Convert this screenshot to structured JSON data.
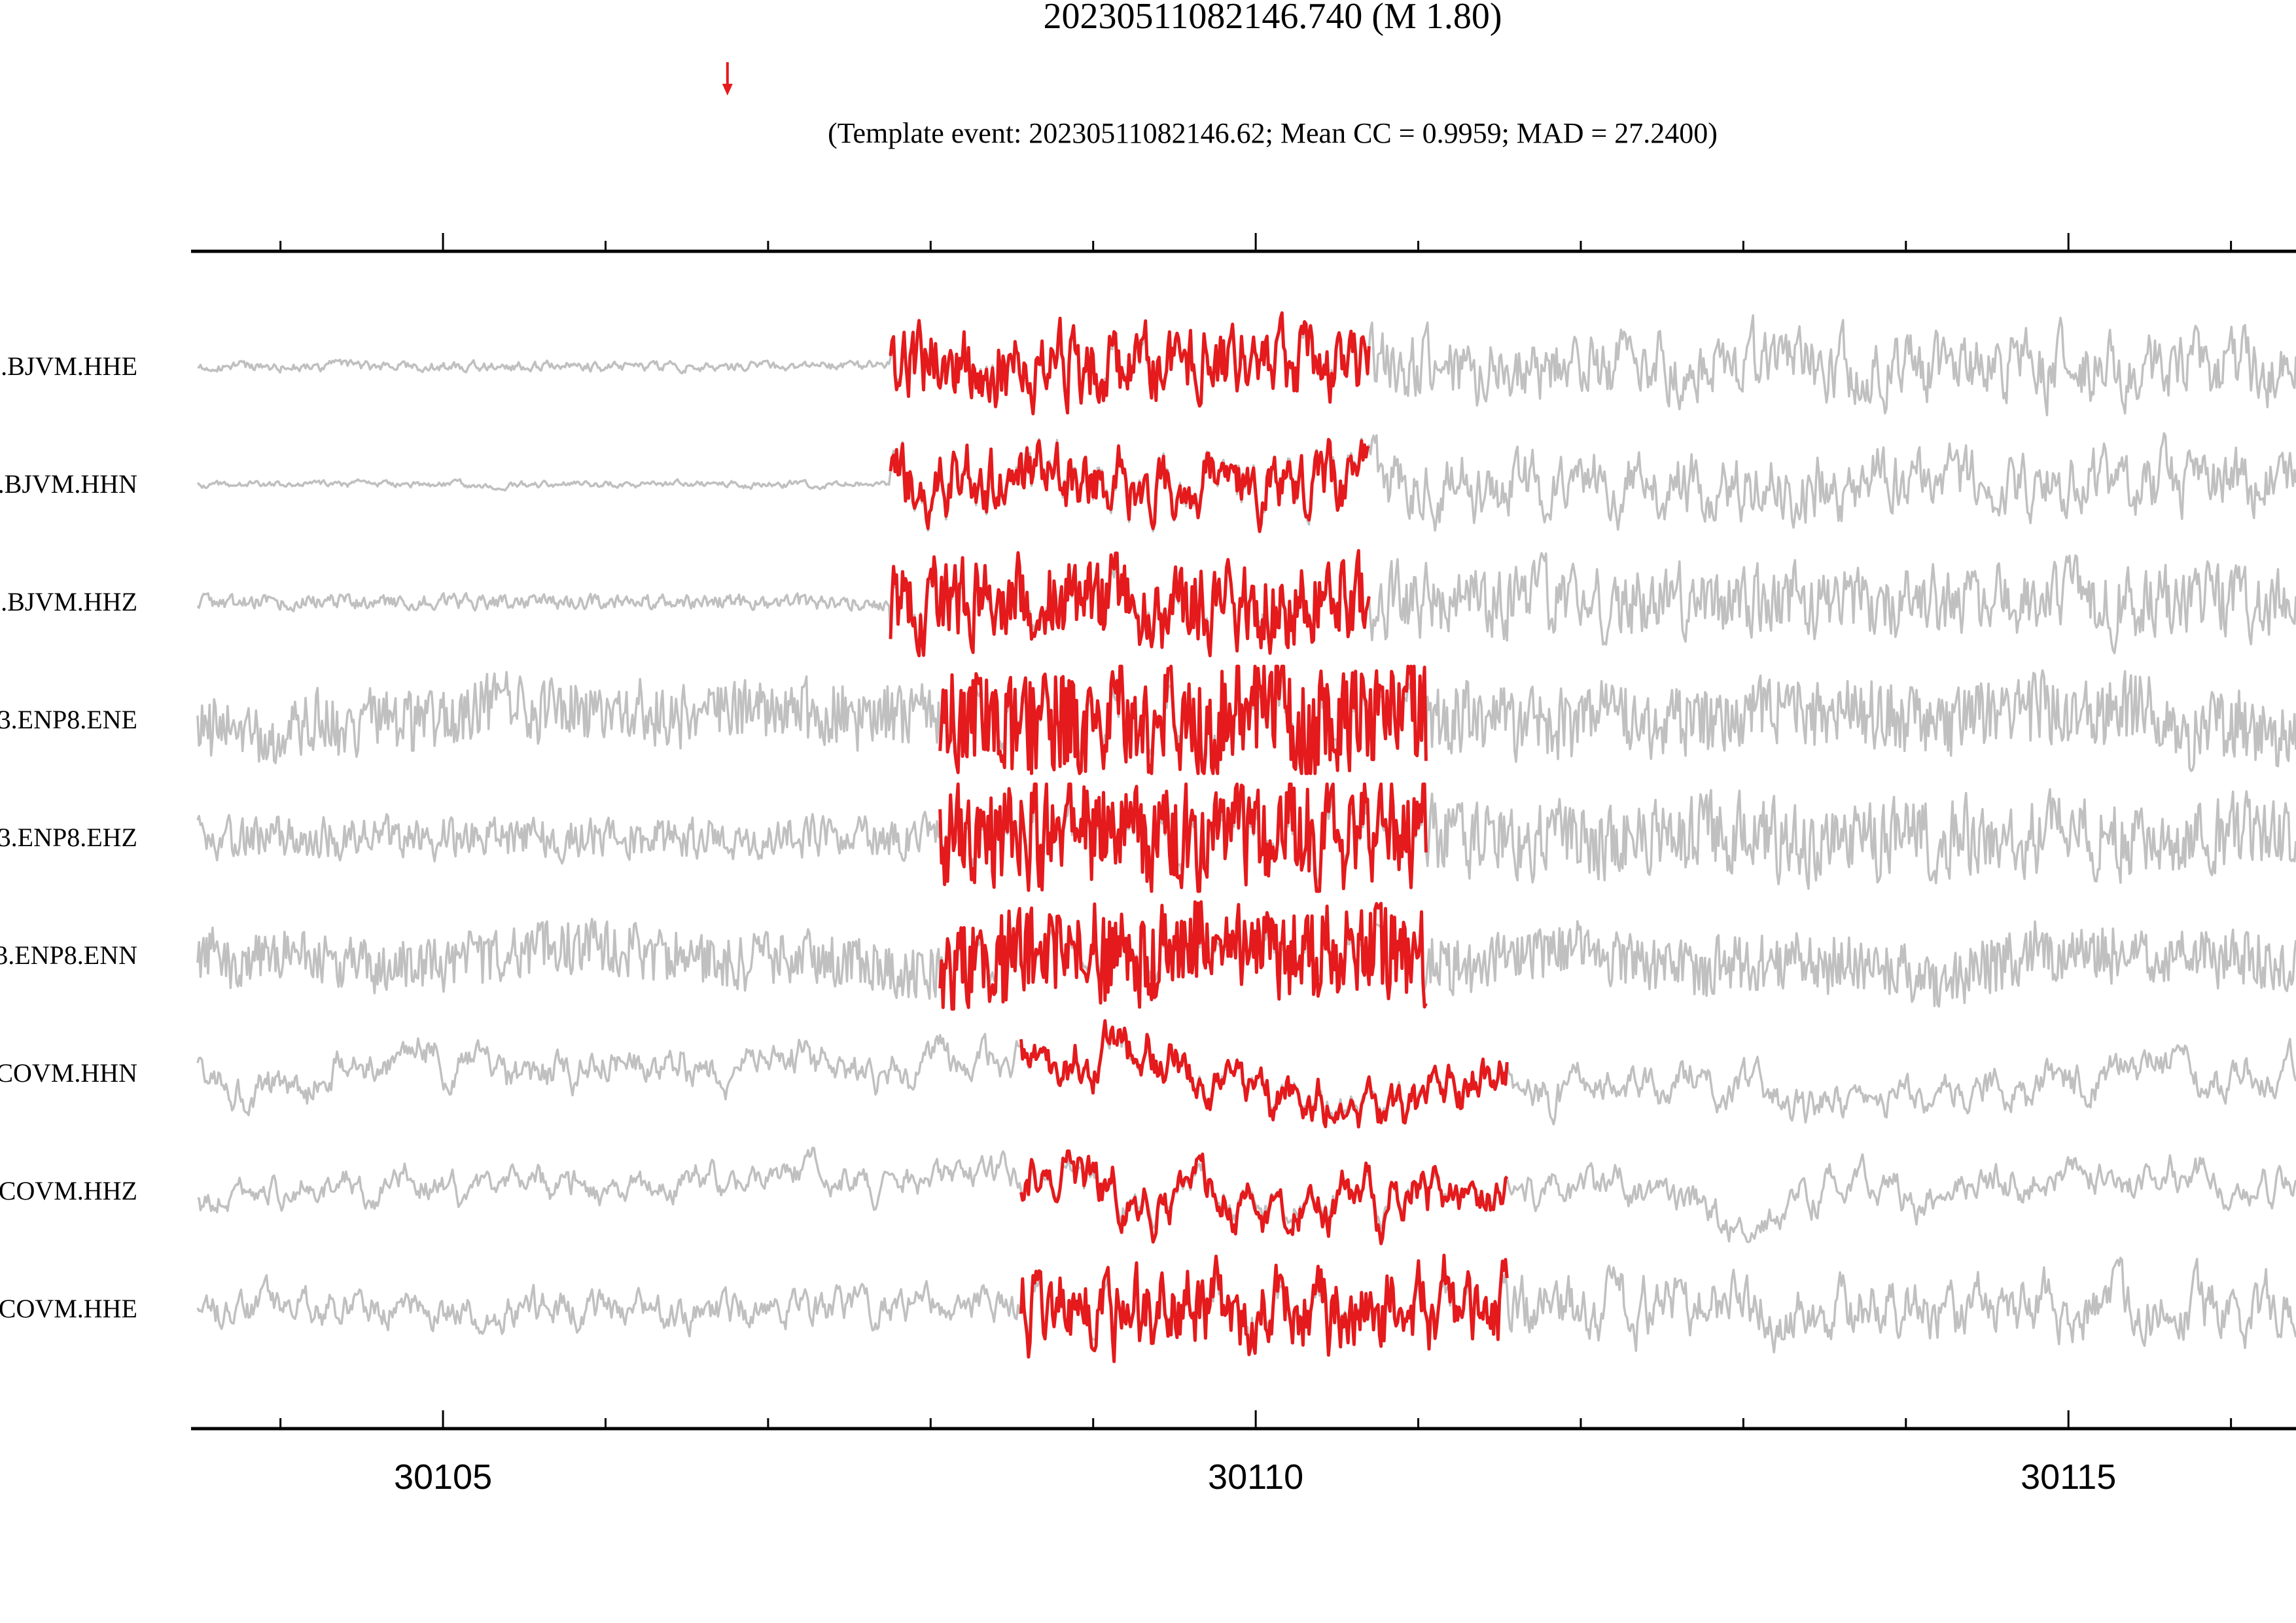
{
  "chart_data": {
    "type": "line",
    "title": "20230511082146.740 (M 1.80)",
    "subtitle": "(Template event: 20230511082146.62; Mean CC = 0.9959; MAD = 27.2400)",
    "xlabel": "",
    "ylabel": "",
    "xlim": [
      30103.45,
      30116.4
    ],
    "x_ticks_major": [
      30105,
      30110,
      30115
    ],
    "x_ticks_minor_step": 1,
    "detection_marker_x": 30106.75,
    "grid": false,
    "legend": "none",
    "colors": {
      "waveform": "#c0c0c0",
      "template": "#e41a1c",
      "axis": "#000000"
    },
    "series": [
      {
        "name": ".BJVM.HHE",
        "template_window": [
          30107.75,
          30110.7
        ],
        "noise": 0.05,
        "amp": 0.34,
        "tpl_amp": 0.34,
        "freq": 0.1
      },
      {
        "name": ".BJVM.HHN",
        "template_window": [
          30107.75,
          30110.7
        ],
        "noise": 0.04,
        "amp": 0.4,
        "tpl_amp": 0.33,
        "freq": 0.08
      },
      {
        "name": ".BJVM.HHZ",
        "template_window": [
          30107.75,
          30110.7
        ],
        "noise": 0.06,
        "amp": 0.3,
        "tpl_amp": 0.32,
        "freq": 0.14
      },
      {
        "name": "3.ENP8.ENE",
        "template_window": [
          30108.05,
          30111.05
        ],
        "noise": 0.28,
        "amp": 0.32,
        "tpl_amp": 0.42,
        "freq": 0.22
      },
      {
        "name": "3.ENP8.EHZ",
        "template_window": [
          30108.05,
          30111.05
        ],
        "noise": 0.14,
        "amp": 0.27,
        "tpl_amp": 0.34,
        "freq": 0.16
      },
      {
        "name": "3.ENP8.ENN",
        "template_window": [
          30108.05,
          30111.05
        ],
        "noise": 0.28,
        "amp": 0.3,
        "tpl_amp": 0.42,
        "freq": 0.22
      },
      {
        "name": "COVM.HHN",
        "template_window": [
          30108.55,
          30111.55
        ],
        "noise": 0.34,
        "amp": 0.36,
        "tpl_amp": 0.34,
        "freq": 0.06
      },
      {
        "name": "COVM.HHZ",
        "template_window": [
          30108.55,
          30111.55
        ],
        "noise": 0.3,
        "amp": 0.34,
        "tpl_amp": 0.4,
        "freq": 0.06
      },
      {
        "name": "COVM.HHE",
        "template_window": [
          30108.55,
          30111.55
        ],
        "noise": 0.16,
        "amp": 0.28,
        "tpl_amp": 0.34,
        "freq": 0.08
      }
    ]
  }
}
